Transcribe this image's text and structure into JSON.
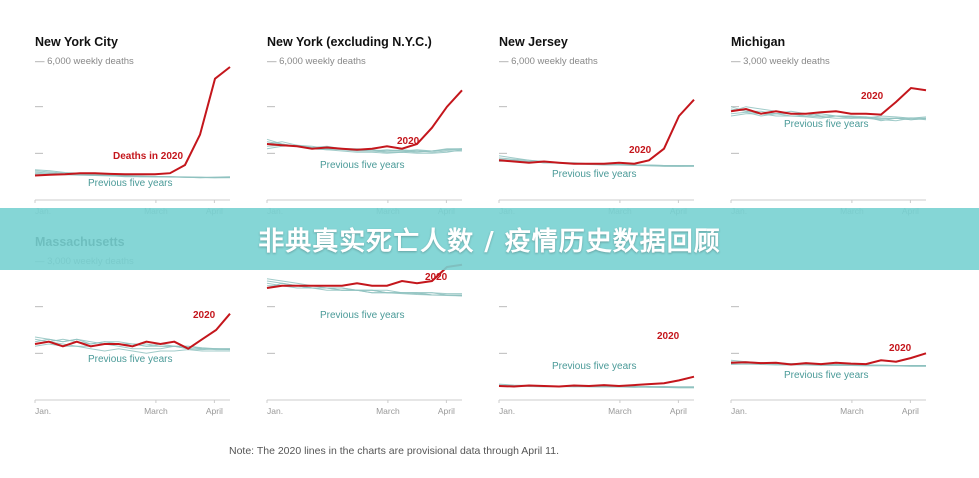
{
  "banner": {
    "text": "非典真实死亡人数 / 疫情历史数据回顾"
  },
  "note": "Note: The 2020 lines in the charts are provisional data through April 11.",
  "colors": {
    "line_2020": "#c4161c",
    "line_prev": "#8fc2c0",
    "label_prev": "#4a9a98",
    "banner": "#78d2d2"
  },
  "chart_data": [
    {
      "type": "line",
      "title": "New York City",
      "scale_label": "— 6,000 weekly deaths",
      "ymax": 6000,
      "x_ticks": [
        "Jan.",
        "March",
        "April"
      ],
      "label_2020": "Deaths in 2020",
      "label_prev": "Previous five years",
      "series_2020": [
        1050,
        1080,
        1100,
        1150,
        1150,
        1120,
        1100,
        1100,
        1100,
        1150,
        1500,
        2800,
        5200,
        5700
      ],
      "series_prev": [
        [
          1200,
          1150,
          1120,
          1100,
          1080,
          1050,
          1050,
          1020,
          1000,
          1000,
          980,
          950,
          980,
          1000
        ],
        [
          1150,
          1150,
          1100,
          1080,
          1050,
          1050,
          1000,
          1000,
          1000,
          980,
          980,
          970,
          950,
          960
        ],
        [
          1250,
          1200,
          1150,
          1100,
          1100,
          1050,
          1050,
          1000,
          1000,
          1000,
          970,
          960,
          960,
          980
        ],
        [
          1100,
          1100,
          1080,
          1060,
          1050,
          1030,
          1020,
          1010,
          1000,
          990,
          980,
          970,
          960,
          960
        ],
        [
          1300,
          1250,
          1180,
          1150,
          1100,
          1080,
          1050,
          1030,
          1010,
          1000,
          990,
          980,
          970,
          970
        ]
      ]
    },
    {
      "type": "line",
      "title": "New York (excluding N.Y.C.)",
      "scale_label": "— 6,000 weekly deaths",
      "ymax": 6000,
      "x_ticks": [
        "Jan.",
        "March",
        "April"
      ],
      "label_2020": "2020",
      "label_prev": "Previous five years",
      "series_2020": [
        2400,
        2350,
        2300,
        2200,
        2250,
        2200,
        2150,
        2200,
        2300,
        2200,
        2400,
        3100,
        4000,
        4700
      ],
      "series_prev": [
        [
          2500,
          2400,
          2300,
          2250,
          2200,
          2200,
          2150,
          2100,
          2100,
          2100,
          2050,
          2100,
          2150,
          2200
        ],
        [
          2300,
          2350,
          2300,
          2200,
          2150,
          2200,
          2200,
          2150,
          2100,
          2150,
          2100,
          2100,
          2200,
          2200
        ],
        [
          2600,
          2400,
          2300,
          2200,
          2150,
          2100,
          2050,
          2050,
          2000,
          2050,
          2000,
          2000,
          2050,
          2150
        ],
        [
          2200,
          2300,
          2350,
          2250,
          2300,
          2200,
          2150,
          2100,
          2150,
          2100,
          2150,
          2100,
          2150,
          2150
        ],
        [
          2400,
          2500,
          2350,
          2300,
          2200,
          2150,
          2100,
          2100,
          2050,
          2050,
          2100,
          2050,
          2100,
          2100
        ]
      ]
    },
    {
      "type": "line",
      "title": "New Jersey",
      "scale_label": "— 6,000 weekly deaths",
      "ymax": 6000,
      "x_ticks": [
        "Jan.",
        "March",
        "April"
      ],
      "label_2020": "2020",
      "label_prev": "Previous five years",
      "series_2020": [
        1700,
        1650,
        1600,
        1650,
        1600,
        1550,
        1550,
        1550,
        1600,
        1550,
        1700,
        2200,
        3600,
        4300
      ],
      "series_prev": [
        [
          1750,
          1700,
          1650,
          1600,
          1600,
          1550,
          1550,
          1500,
          1500,
          1500,
          1480,
          1450,
          1450,
          1450
        ],
        [
          1800,
          1750,
          1700,
          1650,
          1600,
          1600,
          1550,
          1550,
          1520,
          1500,
          1500,
          1480,
          1480,
          1480
        ],
        [
          1650,
          1700,
          1650,
          1600,
          1580,
          1550,
          1520,
          1500,
          1500,
          1480,
          1460,
          1450,
          1440,
          1450
        ],
        [
          1700,
          1650,
          1650,
          1600,
          1580,
          1560,
          1540,
          1520,
          1510,
          1500,
          1490,
          1480,
          1470,
          1470
        ],
        [
          1900,
          1800,
          1700,
          1650,
          1600,
          1580,
          1560,
          1540,
          1520,
          1500,
          1490,
          1480,
          1470,
          1460
        ]
      ]
    },
    {
      "type": "line",
      "title": "Michigan",
      "scale_label": "— 3,000 weekly deaths",
      "ymax": 3000,
      "x_ticks": [
        "Jan.",
        "March",
        "April"
      ],
      "label_2020": "2020",
      "label_prev": "Previous five years",
      "series_2020": [
        1900,
        1950,
        1850,
        1900,
        1850,
        1850,
        1880,
        1900,
        1850,
        1850,
        1830,
        2100,
        2400,
        2350
      ],
      "series_prev": [
        [
          1950,
          1900,
          1850,
          1850,
          1800,
          1800,
          1780,
          1750,
          1750,
          1780,
          1700,
          1750,
          1720,
          1750
        ],
        [
          1850,
          1880,
          1800,
          1850,
          1900,
          1850,
          1800,
          1800,
          1780,
          1750,
          1800,
          1780,
          1750,
          1780
        ],
        [
          2000,
          1900,
          1900,
          1850,
          1850,
          1800,
          1850,
          1800,
          1750,
          1750,
          1720,
          1700,
          1750,
          1720
        ],
        [
          1800,
          1850,
          1850,
          1800,
          1800,
          1780,
          1750,
          1800,
          1780,
          1760,
          1740,
          1750,
          1720,
          1740
        ],
        [
          1900,
          2000,
          1950,
          1900,
          1850,
          1850,
          1800,
          1800,
          1800,
          1780,
          1760,
          1750,
          1760,
          1750
        ]
      ]
    },
    {
      "type": "line",
      "title": "Massachusetts",
      "scale_label": "— 3,000 weekly deaths",
      "ymax": 3000,
      "x_ticks": [
        "Jan.",
        "March",
        "April"
      ],
      "label_2020": "2020",
      "label_prev": "Previous five years",
      "series_2020": [
        1200,
        1250,
        1150,
        1250,
        1150,
        1200,
        1200,
        1150,
        1250,
        1200,
        1250,
        1100,
        1300,
        1500,
        1850
      ],
      "series_prev": [
        [
          1300,
          1250,
          1300,
          1250,
          1200,
          1250,
          1200,
          1200,
          1150,
          1150,
          1150,
          1100,
          1100,
          1100,
          1100
        ],
        [
          1250,
          1300,
          1250,
          1300,
          1250,
          1200,
          1200,
          1200,
          1200,
          1150,
          1150,
          1150,
          1120,
          1100,
          1100
        ],
        [
          1200,
          1250,
          1200,
          1150,
          1150,
          1200,
          1150,
          1100,
          1100,
          1100,
          1150,
          1100,
          1080,
          1100,
          1080
        ],
        [
          1350,
          1300,
          1250,
          1300,
          1200,
          1250,
          1250,
          1200,
          1150,
          1200,
          1150,
          1150,
          1100,
          1080,
          1080
        ],
        [
          1150,
          1200,
          1150,
          1150,
          1100,
          1050,
          1100,
          1050,
          1000,
          1050,
          1050,
          1080,
          1050,
          1050,
          1050
        ]
      ]
    },
    {
      "type": "line",
      "title": "",
      "scale_label": "",
      "ymax": 3000,
      "x_ticks": [
        "Jan.",
        "March",
        "April"
      ],
      "label_2020": "2020",
      "label_prev": "Previous five years",
      "series_2020": [
        2400,
        2450,
        2450,
        2450,
        2450,
        2450,
        2500,
        2450,
        2450,
        2550,
        2500,
        2550,
        2850,
        2900
      ],
      "series_prev": [
        [
          2500,
          2450,
          2450,
          2400,
          2400,
          2400,
          2350,
          2350,
          2350,
          2300,
          2300,
          2300,
          2250,
          2250
        ],
        [
          2600,
          2550,
          2500,
          2450,
          2400,
          2400,
          2350,
          2350,
          2300,
          2300,
          2300,
          2250,
          2250,
          2250
        ],
        [
          2450,
          2450,
          2400,
          2400,
          2400,
          2350,
          2350,
          2350,
          2300,
          2300,
          2300,
          2300,
          2280,
          2280
        ],
        [
          2400,
          2500,
          2450,
          2400,
          2350,
          2350,
          2350,
          2300,
          2300,
          2300,
          2280,
          2250,
          2250,
          2230
        ],
        [
          2550,
          2500,
          2450,
          2400,
          2400,
          2350,
          2350,
          2300,
          2300,
          2280,
          2260,
          2250,
          2240,
          2230
        ]
      ]
    },
    {
      "type": "line",
      "title": "",
      "scale_label": "",
      "ymax": 3000,
      "x_ticks": [
        "Jan.",
        "March",
        "April"
      ],
      "label_2020": "2020",
      "label_prev": "Previous five years",
      "series_2020": [
        300,
        290,
        310,
        300,
        290,
        310,
        300,
        320,
        300,
        320,
        340,
        360,
        420,
        500
      ],
      "series_prev": [
        [
          320,
          310,
          300,
          300,
          290,
          300,
          290,
          280,
          290,
          280,
          290,
          280,
          280,
          280
        ],
        [
          300,
          300,
          310,
          300,
          300,
          290,
          290,
          300,
          290,
          290,
          280,
          290,
          280,
          280
        ],
        [
          340,
          320,
          310,
          300,
          300,
          300,
          290,
          290,
          280,
          280,
          280,
          270,
          270,
          270
        ],
        [
          290,
          300,
          290,
          280,
          290,
          280,
          290,
          280,
          280,
          270,
          280,
          270,
          270,
          270
        ],
        [
          310,
          300,
          300,
          290,
          290,
          290,
          280,
          280,
          280,
          280,
          270,
          270,
          260,
          260
        ]
      ]
    },
    {
      "type": "line",
      "title": "",
      "scale_label": "",
      "ymax": 3000,
      "x_ticks": [
        "Jan.",
        "March",
        "April"
      ],
      "label_2020": "2020",
      "label_prev": "Previous five years",
      "series_2020": [
        800,
        810,
        790,
        800,
        760,
        790,
        770,
        800,
        780,
        770,
        850,
        820,
        900,
        1000
      ],
      "series_prev": [
        [
          820,
          800,
          790,
          780,
          780,
          770,
          760,
          760,
          750,
          750,
          740,
          740,
          740,
          740
        ],
        [
          780,
          800,
          800,
          790,
          780,
          780,
          770,
          760,
          760,
          750,
          750,
          740,
          740,
          740
        ],
        [
          850,
          820,
          800,
          800,
          780,
          770,
          760,
          760,
          750,
          740,
          740,
          740,
          730,
          730
        ],
        [
          800,
          790,
          780,
          770,
          770,
          760,
          760,
          750,
          750,
          740,
          740,
          730,
          730,
          730
        ],
        [
          760,
          770,
          760,
          750,
          750,
          750,
          740,
          740,
          740,
          730,
          730,
          730,
          720,
          720
        ]
      ]
    }
  ]
}
